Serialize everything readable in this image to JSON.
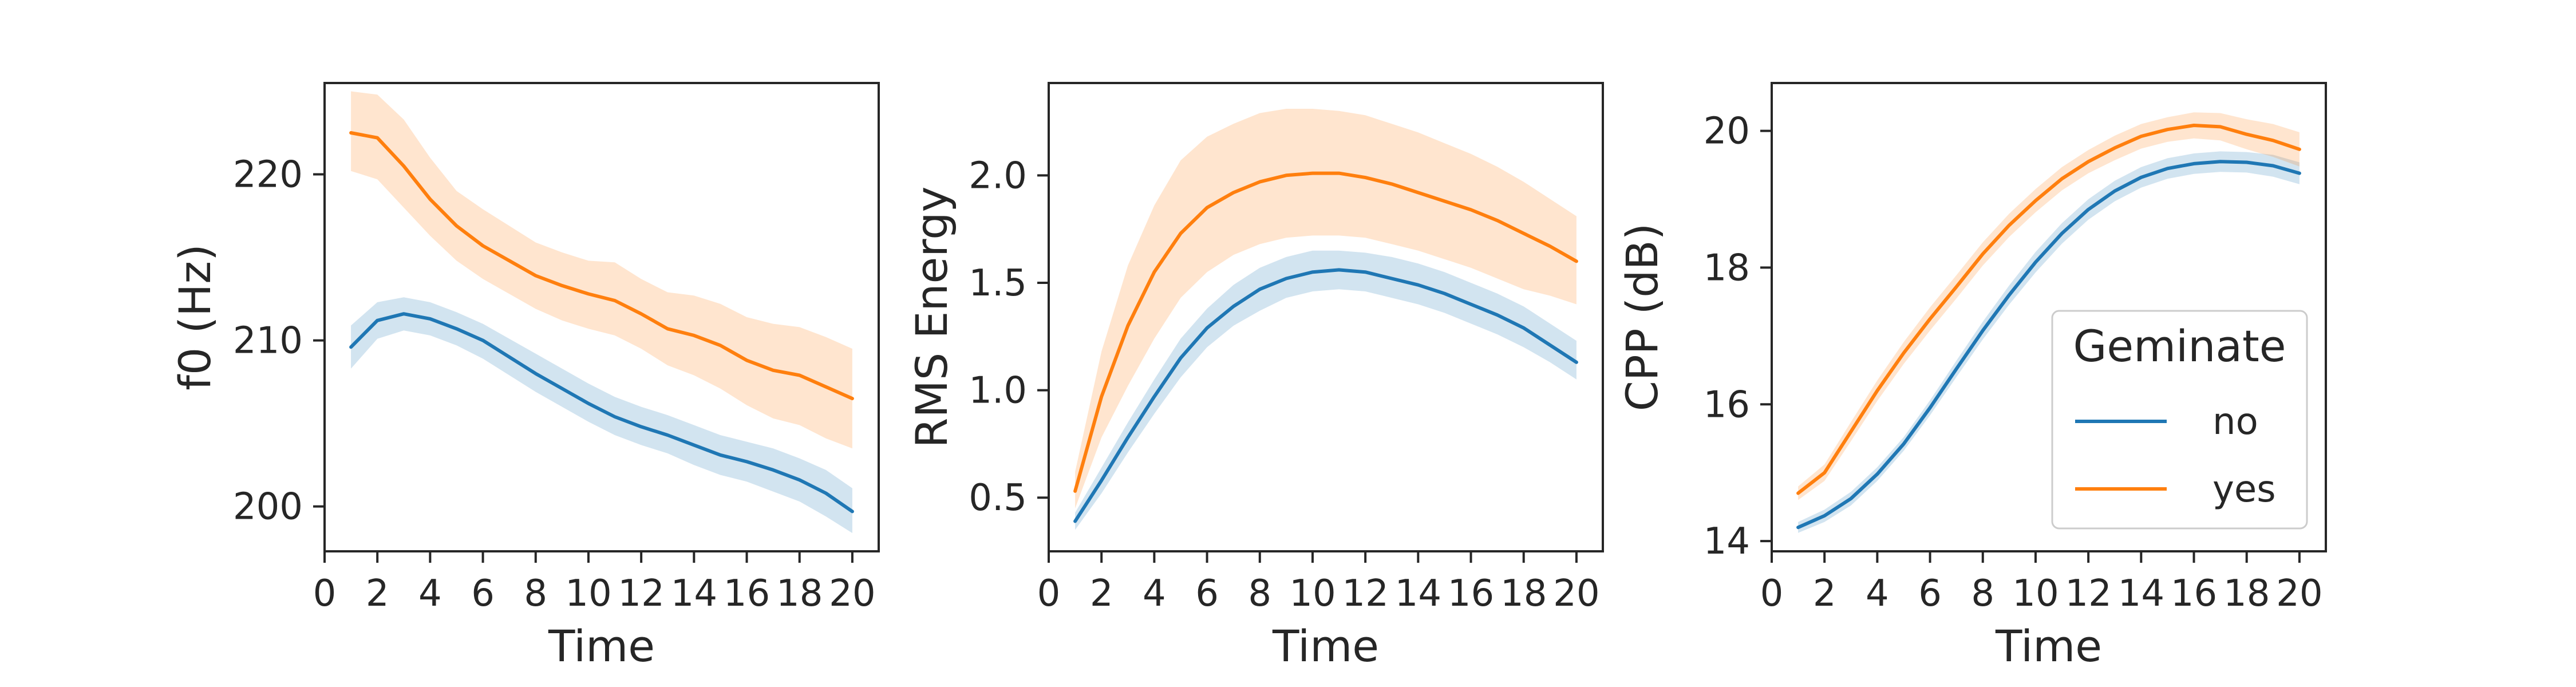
{
  "figure": {
    "background": "#ffffff"
  },
  "colors": {
    "no": "#1f77b4",
    "yes": "#ff7f0e",
    "axis": "#262626"
  },
  "chart_data": [
    {
      "type": "line",
      "xlabel": "Time",
      "ylabel": "f0 (Hz)",
      "xlim": [
        0,
        21
      ],
      "ylim": [
        197.3,
        225.5
      ],
      "xticks": [
        0,
        2,
        4,
        6,
        8,
        10,
        12,
        14,
        16,
        18,
        20
      ],
      "xtick_labels": [
        "0",
        "2",
        "4",
        "6",
        "8",
        "10",
        "12",
        "14",
        "16",
        "18",
        "20"
      ],
      "yticks": [
        200,
        210,
        220
      ],
      "ytick_labels": [
        "200",
        "210",
        "220"
      ],
      "grid": false,
      "x": [
        1,
        2,
        3,
        4,
        5,
        6,
        7,
        8,
        9,
        10,
        11,
        12,
        13,
        14,
        15,
        16,
        17,
        18,
        19,
        20
      ],
      "series": [
        {
          "name": "no",
          "color": "#1f77b4",
          "values": [
            209.6,
            211.2,
            211.6,
            211.3,
            210.7,
            210.0,
            209.0,
            208.0,
            207.1,
            206.2,
            205.4,
            204.8,
            204.3,
            203.7,
            203.1,
            202.7,
            202.2,
            201.6,
            200.8,
            199.7
          ],
          "ci_low": [
            208.3,
            210.1,
            210.6,
            210.3,
            209.7,
            208.9,
            207.9,
            206.9,
            206.0,
            205.1,
            204.3,
            203.7,
            203.2,
            202.5,
            201.9,
            201.5,
            200.9,
            200.3,
            199.4,
            198.4
          ],
          "ci_high": [
            210.9,
            212.3,
            212.6,
            212.3,
            211.7,
            211.0,
            210.1,
            209.2,
            208.3,
            207.4,
            206.6,
            206.0,
            205.5,
            204.9,
            204.3,
            203.9,
            203.5,
            202.9,
            202.2,
            201.1
          ]
        },
        {
          "name": "yes",
          "color": "#ff7f0e",
          "values": [
            222.5,
            222.2,
            220.5,
            218.5,
            216.9,
            215.7,
            214.8,
            213.9,
            213.3,
            212.8,
            212.4,
            211.6,
            210.7,
            210.3,
            209.7,
            208.8,
            208.2,
            207.9,
            207.2,
            206.5
          ],
          "ci_low": [
            220.2,
            219.7,
            218.0,
            216.3,
            214.8,
            213.7,
            212.8,
            211.9,
            211.2,
            210.7,
            210.3,
            209.5,
            208.5,
            207.9,
            207.1,
            206.1,
            205.3,
            204.9,
            204.1,
            203.5
          ],
          "ci_high": [
            225.0,
            224.8,
            223.3,
            221.0,
            219.0,
            217.9,
            216.9,
            215.9,
            215.3,
            214.8,
            214.7,
            213.7,
            212.9,
            212.7,
            212.2,
            211.4,
            211.0,
            210.8,
            210.2,
            209.5
          ]
        }
      ]
    },
    {
      "type": "line",
      "xlabel": "Time",
      "ylabel": "RMS Energy",
      "xlim": [
        0,
        21
      ],
      "ylim": [
        0.25,
        2.43
      ],
      "xticks": [
        0,
        2,
        4,
        6,
        8,
        10,
        12,
        14,
        16,
        18,
        20
      ],
      "xtick_labels": [
        "0",
        "2",
        "4",
        "6",
        "8",
        "10",
        "12",
        "14",
        "16",
        "18",
        "20"
      ],
      "yticks": [
        0.5,
        1.0,
        1.5,
        2.0
      ],
      "ytick_labels": [
        "0.5",
        "1.0",
        "1.5",
        "2.0"
      ],
      "grid": false,
      "x": [
        1,
        2,
        3,
        4,
        5,
        6,
        7,
        8,
        9,
        10,
        11,
        12,
        13,
        14,
        15,
        16,
        17,
        18,
        19,
        20
      ],
      "series": [
        {
          "name": "no",
          "color": "#1f77b4",
          "values": [
            0.39,
            0.58,
            0.78,
            0.97,
            1.15,
            1.29,
            1.39,
            1.47,
            1.52,
            1.55,
            1.56,
            1.55,
            1.52,
            1.49,
            1.45,
            1.4,
            1.35,
            1.29,
            1.21,
            1.13
          ],
          "ci_low": [
            0.35,
            0.52,
            0.71,
            0.89,
            1.06,
            1.2,
            1.3,
            1.37,
            1.43,
            1.46,
            1.47,
            1.46,
            1.43,
            1.4,
            1.36,
            1.31,
            1.26,
            1.2,
            1.13,
            1.05
          ],
          "ci_high": [
            0.43,
            0.64,
            0.85,
            1.05,
            1.24,
            1.38,
            1.49,
            1.57,
            1.62,
            1.65,
            1.65,
            1.64,
            1.62,
            1.59,
            1.55,
            1.5,
            1.45,
            1.39,
            1.31,
            1.23
          ]
        },
        {
          "name": "yes",
          "color": "#ff7f0e",
          "values": [
            0.53,
            0.97,
            1.3,
            1.55,
            1.73,
            1.85,
            1.92,
            1.97,
            2.0,
            2.01,
            2.01,
            1.99,
            1.96,
            1.92,
            1.88,
            1.84,
            1.79,
            1.73,
            1.67,
            1.6
          ],
          "ci_low": [
            0.45,
            0.78,
            1.02,
            1.24,
            1.43,
            1.55,
            1.63,
            1.68,
            1.71,
            1.72,
            1.72,
            1.71,
            1.68,
            1.65,
            1.61,
            1.57,
            1.52,
            1.47,
            1.44,
            1.4
          ],
          "ci_high": [
            0.62,
            1.18,
            1.58,
            1.86,
            2.07,
            2.18,
            2.24,
            2.29,
            2.31,
            2.31,
            2.3,
            2.28,
            2.24,
            2.2,
            2.15,
            2.1,
            2.04,
            1.97,
            1.89,
            1.81
          ]
        }
      ]
    },
    {
      "type": "line",
      "xlabel": "Time",
      "ylabel": "CPP (dB)",
      "xlim": [
        0,
        21
      ],
      "ylim": [
        13.85,
        20.7
      ],
      "xticks": [
        0,
        2,
        4,
        6,
        8,
        10,
        12,
        14,
        16,
        18,
        20
      ],
      "xtick_labels": [
        "0",
        "2",
        "4",
        "6",
        "8",
        "10",
        "12",
        "14",
        "16",
        "18",
        "20"
      ],
      "yticks": [
        14,
        16,
        18,
        20
      ],
      "ytick_labels": [
        "14",
        "16",
        "18",
        "20"
      ],
      "grid": false,
      "legend": {
        "title": "Geminate",
        "placement": "center-right",
        "entries": [
          "no",
          "yes"
        ]
      },
      "x": [
        1,
        2,
        3,
        4,
        5,
        6,
        7,
        8,
        9,
        10,
        11,
        12,
        13,
        14,
        15,
        16,
        17,
        18,
        19,
        20
      ],
      "series": [
        {
          "name": "no",
          "color": "#1f77b4",
          "values": [
            14.2,
            14.37,
            14.62,
            14.98,
            15.42,
            15.95,
            16.52,
            17.08,
            17.6,
            18.08,
            18.5,
            18.85,
            19.12,
            19.32,
            19.45,
            19.52,
            19.55,
            19.54,
            19.49,
            19.38
          ],
          "ci_low": [
            14.12,
            14.28,
            14.52,
            14.88,
            15.32,
            15.84,
            16.4,
            16.95,
            17.46,
            17.93,
            18.35,
            18.7,
            18.97,
            19.17,
            19.3,
            19.37,
            19.4,
            19.39,
            19.33,
            19.22
          ],
          "ci_high": [
            14.28,
            14.46,
            14.72,
            15.08,
            15.52,
            16.06,
            16.64,
            17.21,
            17.74,
            18.23,
            18.65,
            19.0,
            19.27,
            19.47,
            19.6,
            19.67,
            19.7,
            19.69,
            19.65,
            19.54
          ]
        },
        {
          "name": "yes",
          "color": "#ff7f0e",
          "values": [
            14.7,
            15.0,
            15.6,
            16.2,
            16.75,
            17.25,
            17.72,
            18.2,
            18.62,
            18.98,
            19.3,
            19.55,
            19.75,
            19.92,
            20.02,
            20.08,
            20.06,
            19.95,
            19.86,
            19.73
          ],
          "ci_low": [
            14.6,
            14.88,
            15.46,
            16.05,
            16.59,
            17.08,
            17.55,
            18.03,
            18.45,
            18.81,
            19.13,
            19.38,
            19.57,
            19.74,
            19.84,
            19.89,
            19.86,
            19.73,
            19.62,
            19.48
          ],
          "ci_high": [
            14.8,
            15.12,
            15.74,
            16.35,
            16.91,
            17.42,
            17.89,
            18.37,
            18.79,
            19.15,
            19.47,
            19.72,
            19.93,
            20.1,
            20.2,
            20.27,
            20.26,
            20.17,
            20.1,
            19.98
          ]
        }
      ]
    }
  ]
}
